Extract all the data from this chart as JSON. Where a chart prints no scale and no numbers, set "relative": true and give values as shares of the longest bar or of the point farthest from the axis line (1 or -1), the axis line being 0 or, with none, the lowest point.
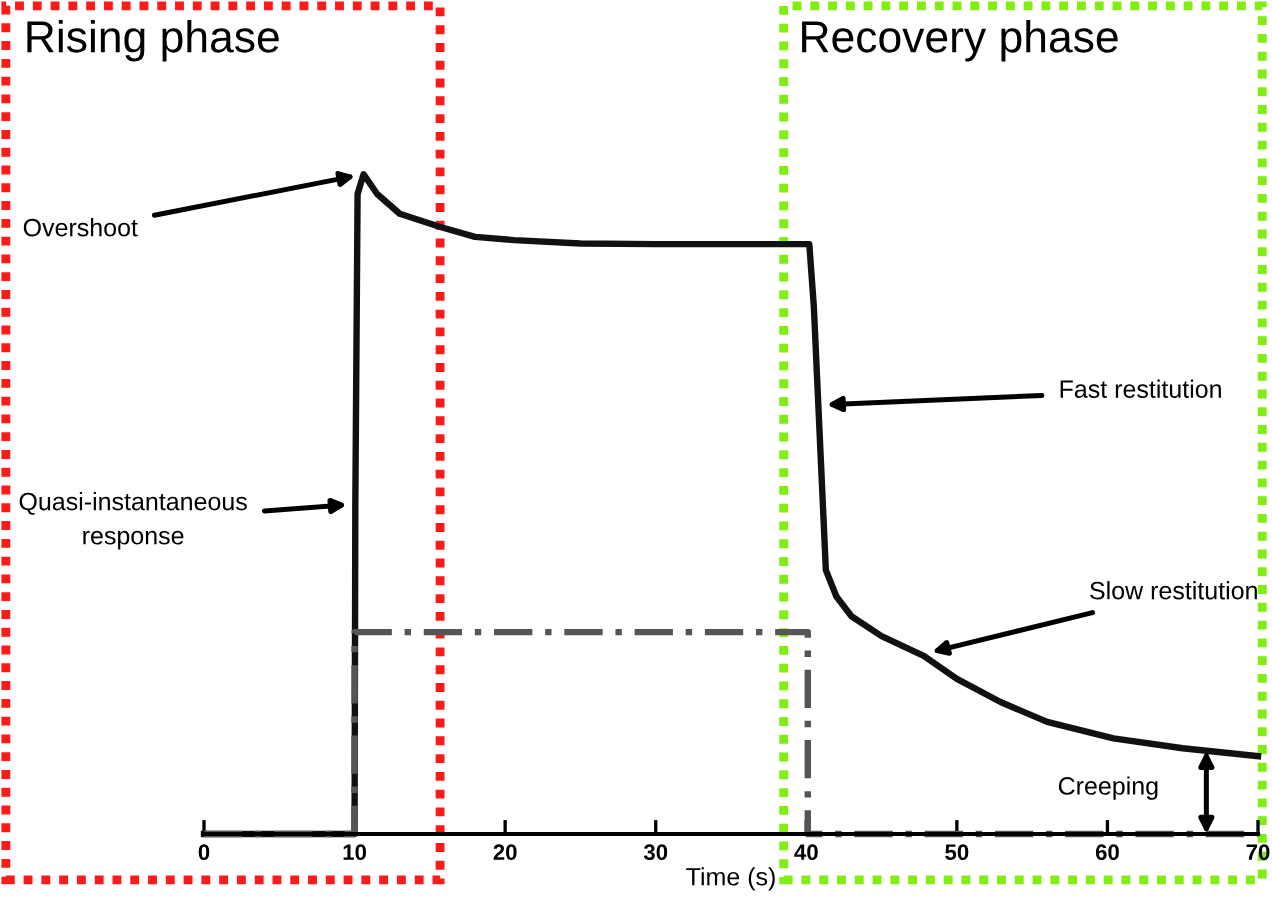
{
  "chart_data": {
    "type": "line",
    "xlabel": "Time (s)",
    "relative": true,
    "tick_labels": "x",
    "grid": false,
    "marker": "none",
    "xlim": [
      0,
      70
    ],
    "xticks": [
      0,
      10,
      20,
      30,
      40,
      50,
      60,
      70
    ],
    "series": [
      {
        "color": "#111111",
        "line_style": "solid",
        "x": [
          0,
          10,
          10.05,
          10.2,
          10.6,
          11.5,
          13,
          15.7,
          18,
          20.6,
          25,
          30,
          38,
          40.2,
          40.5,
          40.8,
          41.1,
          41.3,
          42,
          43,
          45,
          47.8,
          50,
          52.9,
          56,
          60.4,
          65,
          70
        ],
        "values": [
          0,
          0,
          0.5,
          0.97,
          1.0,
          0.97,
          0.94,
          0.92,
          0.905,
          0.9,
          0.895,
          0.894,
          0.894,
          0.894,
          0.8,
          0.65,
          0.5,
          0.4,
          0.36,
          0.33,
          0.3,
          0.27,
          0.235,
          0.2,
          0.17,
          0.145,
          0.13,
          0.118
        ]
      },
      {
        "color": "#555555",
        "line_style": "dashdot",
        "x": [
          0,
          10,
          10,
          40.1,
          40.1,
          70
        ],
        "values": [
          0,
          0,
          0.306,
          0.306,
          0,
          0
        ]
      }
    ],
    "annotations": [
      "Rising phase",
      "Recovery phase",
      {
        "text": "Overshoot",
        "x": 10.6,
        "y": 1.0
      },
      {
        "text": "Quasi-instantaneous\nresponse",
        "x": 10.05,
        "y": 0.5
      },
      {
        "text": "Fast restitution",
        "x": 40.8,
        "y": 0.65
      },
      {
        "text": "Slow restitution",
        "x": 47.8,
        "y": 0.273
      },
      "Creeping"
    ]
  }
}
